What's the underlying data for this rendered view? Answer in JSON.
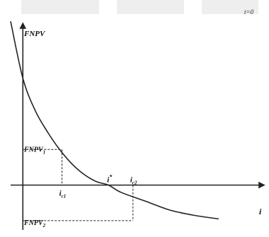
{
  "chart_data": {
    "type": "line",
    "title": "",
    "corner_note": "t=0",
    "ylabel": "FNPV",
    "xlabel": "i",
    "curve_label": "",
    "ylim": [
      -1.2,
      5.0
    ],
    "xlim": [
      -0.05,
      1.0
    ],
    "series": [
      {
        "points": [
          {
            "x": -0.05,
            "y": 4.6
          },
          {
            "x": 0.0,
            "y": 3.0
          },
          {
            "x": 0.05,
            "y": 2.1
          },
          {
            "x": 0.1,
            "y": 1.5
          },
          {
            "x": 0.15,
            "y": 1.0
          },
          {
            "x": 0.2,
            "y": 0.6
          },
          {
            "x": 0.25,
            "y": 0.3
          },
          {
            "x": 0.3,
            "y": 0.1
          },
          {
            "x": 0.35,
            "y": 0.0
          },
          {
            "x": 0.4,
            "y": -0.2
          },
          {
            "x": 0.5,
            "y": -0.45
          },
          {
            "x": 0.6,
            "y": -0.7
          },
          {
            "x": 0.7,
            "y": -0.85
          },
          {
            "x": 0.8,
            "y": -0.95
          }
        ]
      }
    ],
    "annotations": [
      {
        "label_y": "FNPV",
        "label_y_sub": "1",
        "label_x": "i",
        "label_x_sub": "c1",
        "x": 0.16,
        "y": 1.0
      },
      {
        "label_y": "FNPV",
        "label_y_sub": "2",
        "label_x": "i",
        "label_x_sub": "c2",
        "x": 0.45,
        "y": -1.0
      },
      {
        "label_x": "i",
        "label_x_sup": "*",
        "x": 0.35,
        "y": 0.0
      }
    ]
  }
}
